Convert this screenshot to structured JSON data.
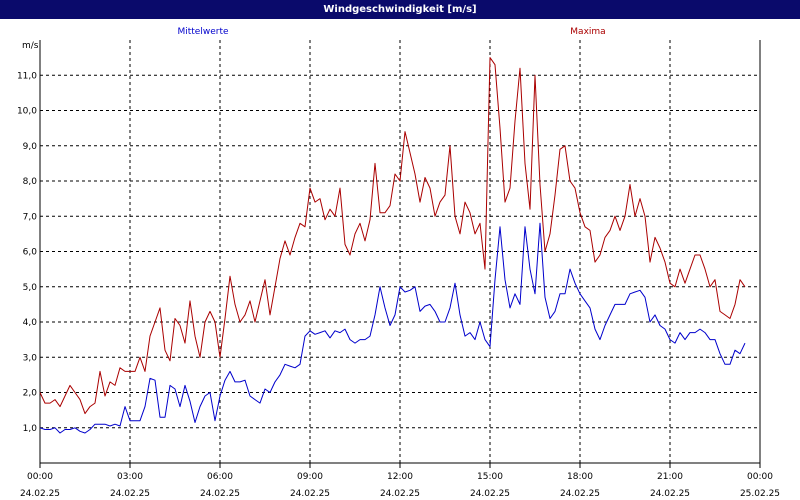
{
  "chart_title": "Windgeschwindigkeit [m/s]",
  "colors": {
    "title_bg": "#0a0a6b",
    "mittel": "#0000cc",
    "maxima": "#aa0000",
    "grid": "#000000"
  },
  "chart_data": {
    "type": "line",
    "title": "Windgeschwindigkeit [m/s]",
    "ylabel": "m/s",
    "ylim": [
      0,
      12
    ],
    "yticks": [
      "1,0",
      "2,0",
      "3,0",
      "4,0",
      "5,0",
      "6,0",
      "7,0",
      "8,0",
      "9,0",
      "10,0",
      "11,0"
    ],
    "xticks": [
      {
        "time": "00:00",
        "date": "24.02.25"
      },
      {
        "time": "03:00",
        "date": "24.02.25"
      },
      {
        "time": "06:00",
        "date": "24.02.25"
      },
      {
        "time": "09:00",
        "date": "24.02.25"
      },
      {
        "time": "12:00",
        "date": "24.02.25"
      },
      {
        "time": "15:00",
        "date": "24.02.25"
      },
      {
        "time": "18:00",
        "date": "24.02.25"
      },
      {
        "time": "21:00",
        "date": "24.02.25"
      },
      {
        "time": "00:00",
        "date": "25.02.25"
      }
    ],
    "grid": true,
    "interval_minutes": 10,
    "series": [
      {
        "name": "Mittelwerte",
        "color": "#0000cc",
        "values": [
          1.0,
          0.95,
          0.95,
          1.0,
          0.85,
          0.95,
          0.95,
          1.0,
          0.9,
          0.85,
          0.95,
          1.1,
          1.1,
          1.1,
          1.05,
          1.1,
          1.05,
          1.6,
          1.2,
          1.2,
          1.2,
          1.6,
          2.4,
          2.35,
          1.3,
          1.3,
          2.2,
          2.1,
          1.6,
          2.2,
          1.75,
          1.15,
          1.6,
          1.9,
          2.0,
          1.2,
          1.9,
          2.35,
          2.6,
          2.3,
          2.3,
          2.35,
          1.9,
          1.8,
          1.7,
          2.1,
          2.0,
          2.3,
          2.5,
          2.8,
          2.75,
          2.7,
          2.8,
          3.6,
          3.75,
          3.65,
          3.7,
          3.75,
          3.55,
          3.75,
          3.7,
          3.8,
          3.5,
          3.4,
          3.5,
          3.5,
          3.6,
          4.2,
          5.0,
          4.4,
          3.9,
          4.2,
          5.0,
          4.85,
          4.9,
          5.0,
          4.3,
          4.45,
          4.5,
          4.3,
          4.0,
          4.0,
          4.4,
          5.1,
          4.2,
          3.6,
          3.7,
          3.5,
          4.0,
          3.5,
          3.3,
          5.2,
          6.7,
          5.2,
          4.4,
          4.8,
          4.5,
          6.7,
          5.5,
          4.8,
          6.8,
          4.7,
          4.1,
          4.3,
          4.8,
          4.8,
          5.5,
          5.1,
          4.8,
          4.6,
          4.4,
          3.8,
          3.5,
          3.9,
          4.2,
          4.5,
          4.5,
          4.5,
          4.8,
          4.85,
          4.9,
          4.7,
          4.0,
          4.2,
          3.9,
          3.8,
          3.5,
          3.4,
          3.7,
          3.5,
          3.7,
          3.7,
          3.8,
          3.7,
          3.5,
          3.5,
          3.1,
          2.8,
          2.8,
          3.2,
          3.1,
          3.4
        ]
      },
      {
        "name": "Maxima",
        "color": "#aa0000",
        "values": [
          2.0,
          1.7,
          1.7,
          1.8,
          1.6,
          1.9,
          2.2,
          2.0,
          1.8,
          1.4,
          1.6,
          1.7,
          2.6,
          1.9,
          2.3,
          2.2,
          2.7,
          2.6,
          2.6,
          2.6,
          3.0,
          2.6,
          3.6,
          4.0,
          4.4,
          3.2,
          2.9,
          4.1,
          3.9,
          3.4,
          4.6,
          3.6,
          3.0,
          4.0,
          4.3,
          4.0,
          3.0,
          4.1,
          5.3,
          4.5,
          4.0,
          4.2,
          4.6,
          4.0,
          4.6,
          5.2,
          4.2,
          5.0,
          5.8,
          6.3,
          5.9,
          6.4,
          6.8,
          6.7,
          7.8,
          7.4,
          7.5,
          6.9,
          7.2,
          7.0,
          7.8,
          6.2,
          5.9,
          6.5,
          6.8,
          6.3,
          6.9,
          8.5,
          7.1,
          7.1,
          7.3,
          8.2,
          8.0,
          9.4,
          8.8,
          8.2,
          7.4,
          8.1,
          7.8,
          7.0,
          7.4,
          7.6,
          9.0,
          7.0,
          6.5,
          7.4,
          7.1,
          6.5,
          6.8,
          5.5,
          11.5,
          11.3,
          9.5,
          7.4,
          7.8,
          9.7,
          11.2,
          8.5,
          7.2,
          11.0,
          7.9,
          6.0,
          6.5,
          7.6,
          8.9,
          9.0,
          8.0,
          7.8,
          7.1,
          6.7,
          6.6,
          5.7,
          5.9,
          6.4,
          6.6,
          7.0,
          6.6,
          7.0,
          7.9,
          7.0,
          7.5,
          7.0,
          5.7,
          6.4,
          6.1,
          5.7,
          5.1,
          5.0,
          5.5,
          5.1,
          5.5,
          5.9,
          5.9,
          5.5,
          5.0,
          5.2,
          4.3,
          4.2,
          4.1,
          4.5,
          5.2,
          5.0
        ]
      }
    ]
  }
}
